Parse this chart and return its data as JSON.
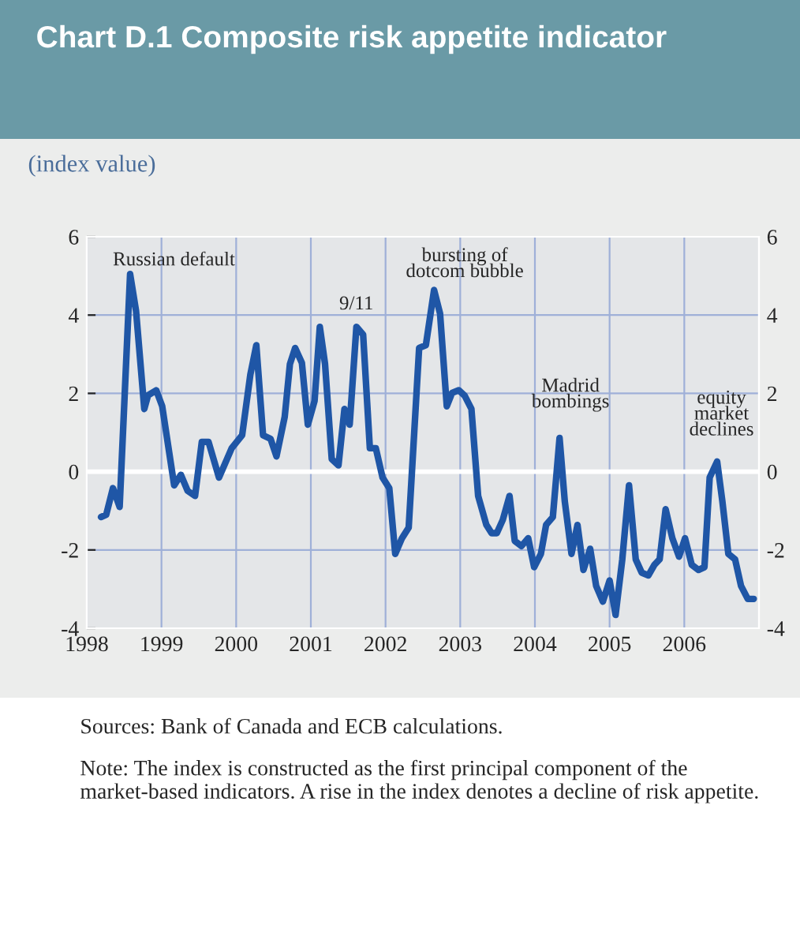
{
  "chart_data": {
    "type": "line",
    "title": "Chart D.1 Composite risk appetite indicator",
    "subtitle": "(index value)",
    "x": [
      1998.19,
      1998.26,
      1998.35,
      1998.44,
      1998.58,
      1998.66,
      1998.77,
      1998.82,
      1998.93,
      1999.01,
      1999.17,
      1999.26,
      1999.35,
      1999.45,
      1999.54,
      1999.63,
      1999.77,
      1999.94,
      2000.08,
      2000.19,
      2000.27,
      2000.36,
      2000.46,
      2000.54,
      2000.65,
      2000.72,
      2000.79,
      2000.88,
      2000.96,
      2001.05,
      2001.12,
      2001.19,
      2001.28,
      2001.37,
      2001.45,
      2001.52,
      2001.61,
      2001.7,
      2001.79,
      2001.87,
      2001.96,
      2002.05,
      2002.13,
      2002.22,
      2002.31,
      2002.45,
      2002.54,
      2002.65,
      2002.73,
      2002.82,
      2002.89,
      2002.98,
      2003.06,
      2003.15,
      2003.24,
      2003.35,
      2003.42,
      2003.49,
      2003.57,
      2003.66,
      2003.73,
      2003.82,
      2003.91,
      2003.99,
      2004.08,
      2004.15,
      2004.24,
      2004.33,
      2004.4,
      2004.49,
      2004.57,
      2004.65,
      2004.74,
      2004.82,
      2004.91,
      2005.0,
      2005.08,
      2005.17,
      2005.26,
      2005.35,
      2005.43,
      2005.52,
      2005.6,
      2005.67,
      2005.75,
      2005.84,
      2005.93,
      2006.01,
      2006.1,
      2006.19,
      2006.27,
      2006.34,
      2006.44,
      2006.51,
      2006.59,
      2006.68,
      2006.76,
      2006.85,
      2006.93
    ],
    "series": [
      {
        "color": "#1f56a6",
        "values": [
          -1.16,
          -1.1,
          -0.42,
          -0.9,
          5.05,
          4.1,
          1.6,
          1.95,
          2.08,
          1.67,
          -0.35,
          -0.08,
          -0.49,
          -0.62,
          0.76,
          0.76,
          -0.15,
          0.6,
          0.93,
          2.48,
          3.23,
          0.93,
          0.84,
          0.39,
          1.4,
          2.75,
          3.16,
          2.78,
          1.2,
          1.81,
          3.7,
          2.75,
          0.32,
          0.16,
          1.6,
          1.2,
          3.7,
          3.5,
          0.6,
          0.6,
          -0.15,
          -0.42,
          -2.1,
          -1.7,
          -1.43,
          3.16,
          3.23,
          4.64,
          4.04,
          1.67,
          2.01,
          2.08,
          1.94,
          1.6,
          -0.62,
          -1.36,
          -1.57,
          -1.57,
          -1.23,
          -0.62,
          -1.77,
          -1.9,
          -1.7,
          -2.44,
          -2.1,
          -1.36,
          -1.16,
          0.86,
          -0.76,
          -2.1,
          -1.36,
          -2.51,
          -1.97,
          -2.92,
          -3.32,
          -2.78,
          -3.66,
          -2.24,
          -0.35,
          -2.24,
          -2.58,
          -2.65,
          -2.38,
          -2.24,
          -0.96,
          -1.7,
          -2.17,
          -1.7,
          -2.38,
          -2.51,
          -2.44,
          -0.15,
          0.26,
          -0.76,
          -2.1,
          -2.24,
          -2.92,
          -3.25,
          -3.25
        ]
      }
    ],
    "xlim": [
      1998,
      2007
    ],
    "xticks": [
      1998,
      1999,
      2000,
      2001,
      2002,
      2003,
      2004,
      2005,
      2006
    ],
    "ylim": [
      -4,
      6
    ],
    "yticks": [
      -4,
      -2,
      0,
      2,
      4,
      6
    ],
    "y2lim": [
      -4,
      6
    ],
    "y2ticks": [
      -4,
      -2,
      0,
      2,
      4,
      6
    ],
    "grid": true,
    "line_style": "solid",
    "marker": "none",
    "ref_lines": [
      {
        "axis": "y",
        "value": 0,
        "color": "#ffffff"
      }
    ],
    "annotations": [
      {
        "text": "Russian default",
        "x": 1998.58,
        "y": 5.05
      },
      {
        "text": "9/11",
        "x": 2001.61,
        "y": 3.7
      },
      {
        "text": "bursting of\ndotcom bubble",
        "x": 2002.65,
        "y": 4.64
      },
      {
        "text": "Madrid\nbombings",
        "x": 2004.33,
        "y": 0.86
      },
      {
        "text": "equity\nmarket\ndeclines",
        "x": 2006.44,
        "y": 0.26
      },
      "Sources: Bank of Canada and ECB calculations.",
      "Note: The index is constructed as the first principal component of the market-based indicators. A rise in the index denotes a decline of risk appetite."
    ]
  }
}
